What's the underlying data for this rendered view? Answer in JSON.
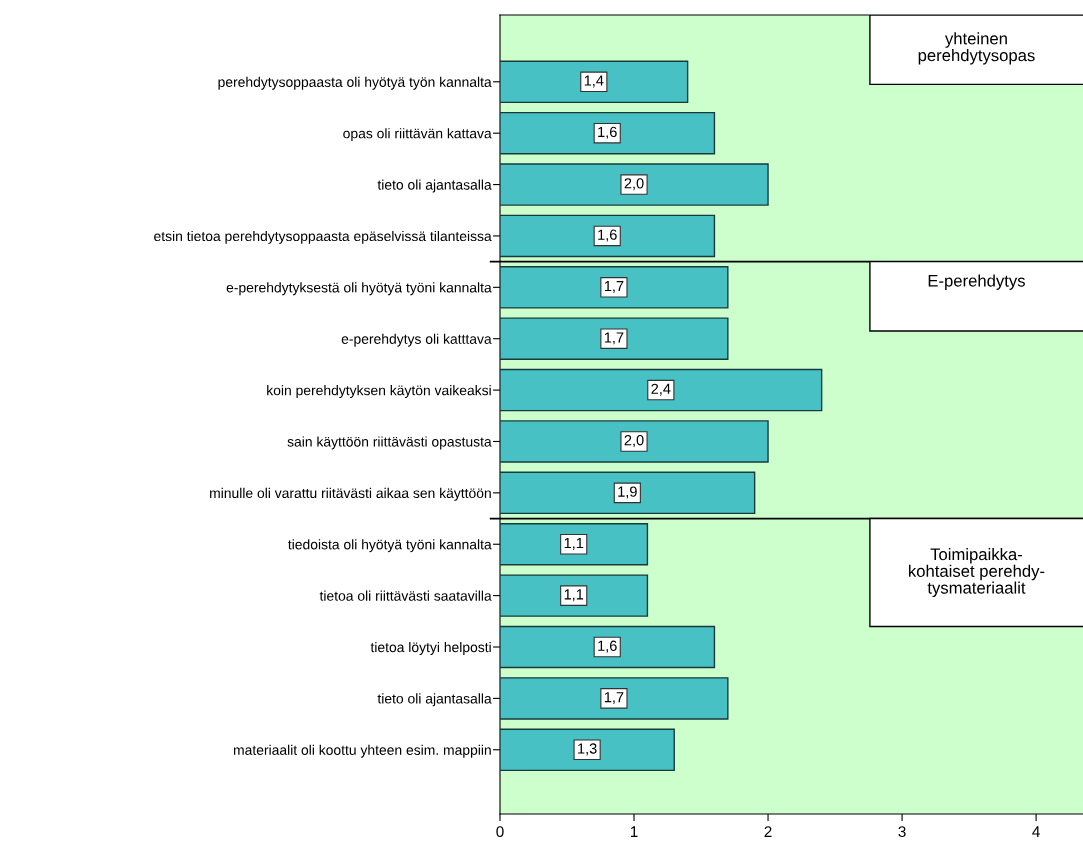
{
  "chart_data": {
    "type": "bar",
    "orientation": "horizontal",
    "categories": [
      "perehdytysoppaasta oli hyötyä työn kannalta",
      "opas oli riittävän kattava",
      "tieto oli ajantasalla",
      "etsin tietoa perehdytysoppaasta epäselvissä tilanteissa",
      "e-perehdytyksestä oli hyötyä työni kannalta",
      "e-perehdytys oli katttava",
      "koin perehdytyksen käytön vaikeaksi",
      "sain käyttöön riittävästi opastusta",
      "minulle oli varattu riitävästi aikaa sen käyttöön",
      "tiedoista oli hyötyä työni kannalta",
      "tietoa oli riittävästi saatavilla",
      "tietoa löytyi helposti",
      "tieto oli ajantasalla",
      "materiaalit oli koottu yhteen esim. mappiin"
    ],
    "values": [
      1.4,
      1.6,
      2.0,
      1.6,
      1.7,
      1.7,
      2.4,
      2.0,
      1.9,
      1.1,
      1.1,
      1.6,
      1.7,
      1.3
    ],
    "value_labels": [
      "1,4",
      "1,6",
      "2,0",
      "1,6",
      "1,7",
      "1,7",
      "2,4",
      "2,0",
      "1,9",
      "1,1",
      "1,1",
      "1,6",
      "1,7",
      "1,3"
    ],
    "color": "#48c1c4",
    "xlim": [
      0,
      4.35
    ],
    "xticks": [
      0,
      1,
      2,
      3,
      4
    ],
    "grid": false,
    "annotations": [
      "yhteinen\nperehdytysopas",
      "E-perehdytys",
      "Toimipaikka-\nkohtaiset perehdy-\ntysmateriaalit"
    ]
  }
}
